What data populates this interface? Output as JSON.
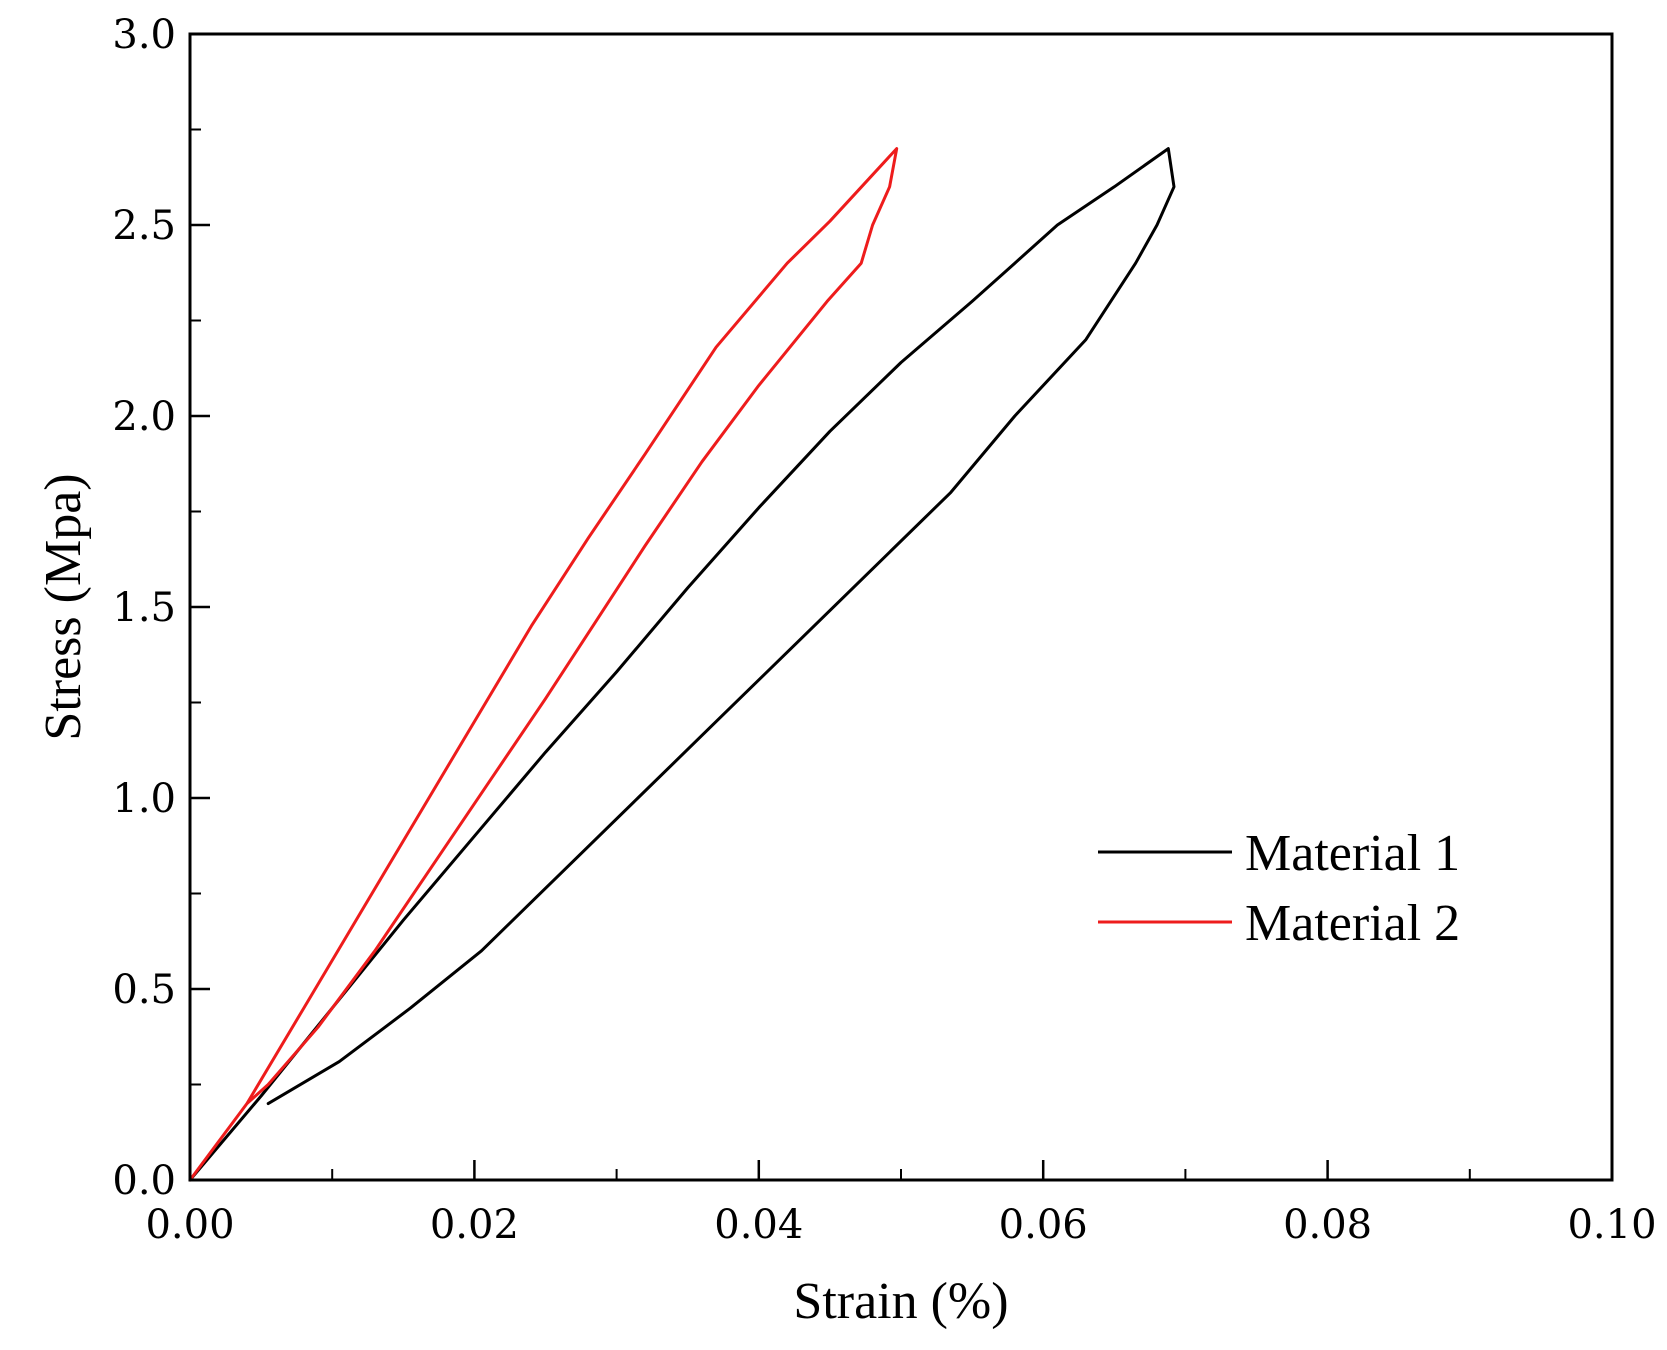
{
  "chart_data": {
    "type": "line",
    "title": "",
    "xlabel": "Strain (%)",
    "ylabel": "Stress (Mpa)",
    "xlim": [
      0,
      0.1
    ],
    "ylim": [
      0,
      3.0
    ],
    "x_ticks": [
      0,
      0.02,
      0.04,
      0.06,
      0.08,
      0.1
    ],
    "x_tick_labels": [
      "0.00",
      "0.02",
      "0.04",
      "0.06",
      "0.08",
      "0.10"
    ],
    "x_minor_step": 0.01,
    "y_ticks": [
      0,
      0.5,
      1.0,
      1.5,
      2.0,
      2.5,
      3.0
    ],
    "y_tick_labels": [
      "0.0",
      "0.5",
      "1.0",
      "1.5",
      "2.0",
      "2.5",
      "3.0"
    ],
    "y_minor_step": 0.25,
    "grid": false,
    "legend_position": "right",
    "series": [
      {
        "name": "Material 1",
        "color": "#000000",
        "points": [
          [
            0,
            0
          ],
          [
            0.005,
            0.22
          ],
          [
            0.01,
            0.45
          ],
          [
            0.015,
            0.68
          ],
          [
            0.02,
            0.9
          ],
          [
            0.025,
            1.12
          ],
          [
            0.03,
            1.33
          ],
          [
            0.035,
            1.55
          ],
          [
            0.04,
            1.76
          ],
          [
            0.045,
            1.96
          ],
          [
            0.05,
            2.14
          ],
          [
            0.055,
            2.3
          ],
          [
            0.058,
            2.4
          ],
          [
            0.061,
            2.5
          ],
          [
            0.065,
            2.6
          ],
          [
            0.0688,
            2.7
          ],
          [
            0.0692,
            2.6
          ],
          [
            0.068,
            2.5
          ],
          [
            0.0665,
            2.4
          ],
          [
            0.063,
            2.2
          ],
          [
            0.058,
            2.0
          ],
          [
            0.0535,
            1.8
          ],
          [
            0.048,
            1.6
          ],
          [
            0.0425,
            1.4
          ],
          [
            0.037,
            1.2
          ],
          [
            0.0315,
            1.0
          ],
          [
            0.026,
            0.8
          ],
          [
            0.0205,
            0.6
          ],
          [
            0.0155,
            0.45
          ],
          [
            0.0105,
            0.31
          ],
          [
            0.0055,
            0.2
          ]
        ]
      },
      {
        "name": "Material 2",
        "color": "#ee1c1c",
        "points": [
          [
            0,
            0
          ],
          [
            0.004,
            0.2
          ],
          [
            0.008,
            0.45
          ],
          [
            0.012,
            0.7
          ],
          [
            0.016,
            0.95
          ],
          [
            0.02,
            1.2
          ],
          [
            0.024,
            1.45
          ],
          [
            0.028,
            1.68
          ],
          [
            0.032,
            1.9
          ],
          [
            0.037,
            2.18
          ],
          [
            0.042,
            2.4
          ],
          [
            0.045,
            2.51
          ],
          [
            0.0497,
            2.7
          ],
          [
            0.0492,
            2.6
          ],
          [
            0.048,
            2.5
          ],
          [
            0.0472,
            2.4
          ],
          [
            0.0448,
            2.3
          ],
          [
            0.04,
            2.08
          ],
          [
            0.036,
            1.88
          ],
          [
            0.032,
            1.66
          ],
          [
            0.0285,
            1.46
          ],
          [
            0.025,
            1.26
          ],
          [
            0.021,
            1.04
          ],
          [
            0.017,
            0.82
          ],
          [
            0.013,
            0.6
          ],
          [
            0.009,
            0.4
          ],
          [
            0.0055,
            0.25
          ],
          [
            0.004,
            0.2
          ]
        ]
      }
    ]
  }
}
